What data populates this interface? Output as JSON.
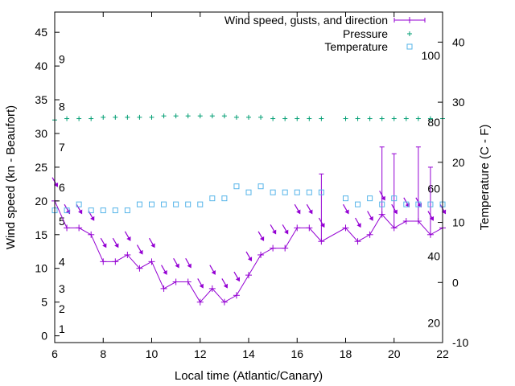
{
  "chart_data": {
    "type": "line",
    "title": "",
    "xlabel": "Local time (Atlantic/Canary)",
    "ylabel": "Wind speed (kn - Beaufort)",
    "y2label": "Temperature (C - F)",
    "xlim": [
      6,
      22
    ],
    "ylim": [
      -1,
      48
    ],
    "y2lim": [
      -10,
      45
    ],
    "xticks": [
      6,
      8,
      10,
      12,
      14,
      16,
      18,
      20,
      22
    ],
    "yticks": [
      0,
      5,
      10,
      15,
      20,
      25,
      30,
      35,
      40,
      45
    ],
    "y2ticks": [
      -10,
      0,
      10,
      20,
      30,
      40
    ],
    "beaufort_labels": [
      {
        "label": "1",
        "y": 1
      },
      {
        "label": "2",
        "y": 4
      },
      {
        "label": "3",
        "y": 7
      },
      {
        "label": "4",
        "y": 11
      },
      {
        "label": "5",
        "y": 17
      },
      {
        "label": "6",
        "y": 22
      },
      {
        "label": "7",
        "y": 28
      },
      {
        "label": "8",
        "y": 34
      },
      {
        "label": "9",
        "y": 41
      }
    ],
    "fahrenheit_labels": [
      {
        "label": "20",
        "t": -6.7
      },
      {
        "label": "40",
        "t": 4.4
      },
      {
        "label": "60",
        "t": 15.6
      },
      {
        "label": "80",
        "t": 26.7
      },
      {
        "label": "100",
        "t": 37.8
      }
    ],
    "grid": false,
    "legend_position": "top-right",
    "series": [
      {
        "name": "Wind speed, gusts, and direction",
        "color": "#9400d3",
        "x": [
          6,
          6.5,
          7,
          7.5,
          8,
          8.5,
          9,
          9.5,
          10,
          10.5,
          11,
          11.5,
          12,
          12.5,
          13,
          13.5,
          14,
          14.5,
          15,
          15.5,
          16,
          16.5,
          17,
          18,
          18.5,
          19,
          19.5,
          20,
          20.5,
          21,
          21.5,
          22
        ],
        "y": [
          20,
          16,
          16,
          15,
          11,
          11,
          12,
          10,
          11,
          7,
          8,
          8,
          5,
          7,
          5,
          6,
          9,
          12,
          13,
          13,
          16,
          16,
          14,
          16,
          14,
          15,
          18,
          16,
          17,
          17,
          15,
          16
        ],
        "gusts": [
          null,
          null,
          null,
          null,
          null,
          null,
          null,
          null,
          null,
          null,
          null,
          null,
          null,
          null,
          null,
          null,
          null,
          null,
          null,
          null,
          null,
          null,
          24,
          null,
          null,
          null,
          28,
          27,
          null,
          28,
          25,
          null
        ],
        "direction_deg": [
          330,
          330,
          330,
          330,
          330,
          330,
          330,
          330,
          330,
          330,
          330,
          330,
          330,
          330,
          330,
          330,
          330,
          330,
          330,
          330,
          330,
          330,
          330,
          330,
          330,
          330,
          330,
          330,
          330,
          330,
          330,
          330
        ]
      },
      {
        "name": "Pressure",
        "color": "#009e73",
        "x": [
          6,
          6.5,
          7,
          7.5,
          8,
          8.5,
          9,
          9.5,
          10,
          10.5,
          11,
          11.5,
          12,
          12.5,
          13,
          13.5,
          14,
          14.5,
          15,
          15.5,
          16,
          16.5,
          17,
          18,
          18.5,
          19,
          19.5,
          20,
          20.5,
          21,
          21.5,
          22
        ],
        "y": [
          32,
          32.2,
          32.2,
          32.2,
          32.4,
          32.4,
          32.4,
          32.4,
          32.4,
          32.6,
          32.6,
          32.6,
          32.6,
          32.6,
          32.6,
          32.4,
          32.4,
          32.4,
          32.2,
          32.2,
          32.2,
          32.2,
          32.2,
          32.2,
          32.2,
          32.2,
          32.2,
          32.2,
          32.2,
          32.2,
          32.2,
          32.2
        ]
      },
      {
        "name": "Temperature",
        "color": "#56b4e9",
        "axis": "y2",
        "x": [
          6,
          6.5,
          7,
          7.5,
          8,
          8.5,
          9,
          9.5,
          10,
          10.5,
          11,
          11.5,
          12,
          12.5,
          13,
          13.5,
          14,
          14.5,
          15,
          15.5,
          16,
          16.5,
          17,
          18,
          18.5,
          19,
          19.5,
          20,
          20.5,
          21,
          21.5,
          22
        ],
        "y": [
          12,
          12,
          13,
          12,
          12,
          12,
          12,
          13,
          13,
          13,
          13,
          13,
          13,
          14,
          14,
          16,
          15,
          16,
          15,
          15,
          15,
          15,
          15,
          14,
          13,
          14,
          13,
          14,
          13,
          13,
          13,
          13
        ]
      }
    ]
  }
}
